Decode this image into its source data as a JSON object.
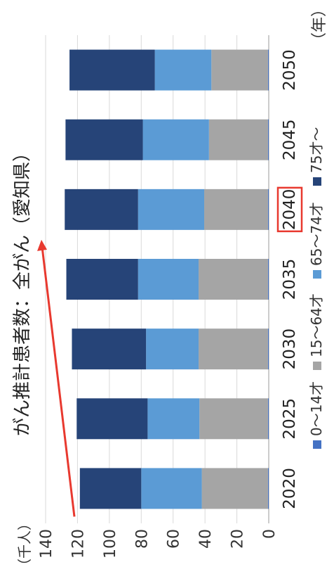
{
  "chart_data": {
    "type": "bar",
    "stacked": true,
    "orientation": "vertical (figure rotated 90° counter-clockwise)",
    "title": "がん推計患者数：全がん（愛知県）",
    "ylabel": "（千人）",
    "xlabel_unit": "（年）",
    "categories": [
      "2020",
      "2025",
      "2030",
      "2035",
      "2040",
      "2045",
      "2050"
    ],
    "highlighted_category": "2040",
    "ylim": [
      0,
      140
    ],
    "yticks": [
      "0",
      "20",
      "40",
      "60",
      "80",
      "100",
      "120",
      "140"
    ],
    "grid": true,
    "legend_position": "bottom",
    "series": [
      {
        "name": "0～14才",
        "color": "#4472C4",
        "values": [
          0.5,
          0.5,
          0.5,
          0.5,
          0.5,
          0.5,
          0.5
        ]
      },
      {
        "name": "15～64才",
        "color": "#A5A5A5",
        "values": [
          41.5,
          43,
          43.5,
          43.5,
          40,
          37,
          35.5
        ]
      },
      {
        "name": "65～74才",
        "color": "#5B9BD5",
        "values": [
          38,
          32.5,
          33,
          38,
          41.5,
          41.5,
          35.5
        ]
      },
      {
        "name": "75才～",
        "color": "#264478",
        "values": [
          38.5,
          44.5,
          46.5,
          45,
          46,
          48.5,
          53.5
        ]
      }
    ]
  },
  "annotations": {
    "arrow_color": "#E8392F",
    "highlight_box_color": "#E8392F"
  }
}
